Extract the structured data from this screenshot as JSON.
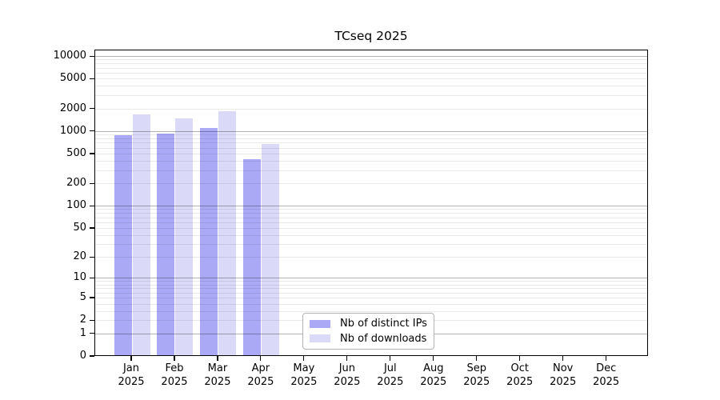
{
  "title": "TCseq 2025",
  "chart_data": {
    "type": "bar",
    "title": "TCseq 2025",
    "categories": [
      "Jan",
      "Feb",
      "Mar",
      "Apr",
      "May",
      "Jun",
      "Jul",
      "Aug",
      "Sep",
      "Oct",
      "Nov",
      "Dec"
    ],
    "category_year": "2025",
    "x_tick_labels": [
      "Jan 2025",
      "Feb 2025",
      "Mar 2025",
      "Apr 2025",
      "May 2025",
      "Jun 2025",
      "Jul 2025",
      "Aug 2025",
      "Sep 2025",
      "Oct 2025",
      "Nov 2025",
      "Dec 2025"
    ],
    "series": [
      {
        "name": "Nb of distinct IPs",
        "color": "#a9a9f6",
        "values": [
          880,
          925,
          1090,
          425,
          0,
          0,
          0,
          0,
          0,
          0,
          0,
          0
        ]
      },
      {
        "name": "Nb of downloads",
        "color": "#dadaf8",
        "values": [
          1660,
          1470,
          1840,
          680,
          0,
          0,
          0,
          0,
          0,
          0,
          0,
          0
        ]
      }
    ],
    "y_ticks": [
      0,
      1,
      2,
      5,
      10,
      20,
      50,
      100,
      200,
      500,
      1000,
      2000,
      5000,
      10000
    ],
    "y_scale": "log10(value+1)",
    "ylim": [
      0,
      10000
    ],
    "grid": "horizontal, minor light + major dark at powers of ten",
    "legend_position": "inside-bottom-center"
  },
  "colors": {
    "bar_distinct_ips": "#a9a9f6",
    "bar_downloads": "#dadaf8",
    "grid_minor": "rgba(0,0,0,0.085)",
    "grid_major": "rgba(0,0,0,0.30)",
    "spine": "#000000",
    "background": "#ffffff"
  }
}
